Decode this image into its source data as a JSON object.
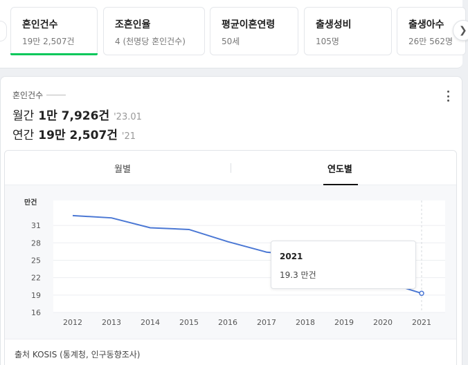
{
  "cards": [
    {
      "title": "혼인건수",
      "sub": "19만 2,507건",
      "active": true
    },
    {
      "title": "조혼인율",
      "sub": "4 (천명당 혼인건수)"
    },
    {
      "title": "평균이혼연령",
      "sub": "50세"
    },
    {
      "title": "출생성비",
      "sub": "105명"
    },
    {
      "title": "출생아수",
      "sub": "26만 562명"
    }
  ],
  "stat": {
    "label": "혼인건수",
    "monthly": {
      "label": "월간",
      "value": "1만 7,926건",
      "period": "'23.01"
    },
    "yearly": {
      "label": "연간",
      "value": "19만 2,507건",
      "period": "'21"
    }
  },
  "tabs": {
    "monthly": "월별",
    "yearly": "연도별",
    "active": "yearly"
  },
  "tooltip": {
    "year": "2021",
    "value": "19.3 만건"
  },
  "source": "출처 KOSIS (통계청, 인구동향조사)",
  "colors": {
    "accent": "#03c75a",
    "line": "#4a77d4"
  },
  "chart_data": {
    "type": "line",
    "title": "",
    "ylabel": "만건",
    "xlabel": "",
    "x": [
      "2012",
      "2013",
      "2014",
      "2015",
      "2016",
      "2017",
      "2018",
      "2019",
      "2020",
      "2021"
    ],
    "yticks": [
      16,
      19,
      22,
      25,
      28,
      31
    ],
    "ylim": [
      16,
      35.3
    ],
    "grid": true,
    "series": [
      {
        "values": [
          32.7,
          32.3,
          30.6,
          30.3,
          28.2,
          26.4,
          25.8,
          23.9,
          21.4,
          19.3
        ]
      }
    ],
    "highlight_index": 9
  }
}
